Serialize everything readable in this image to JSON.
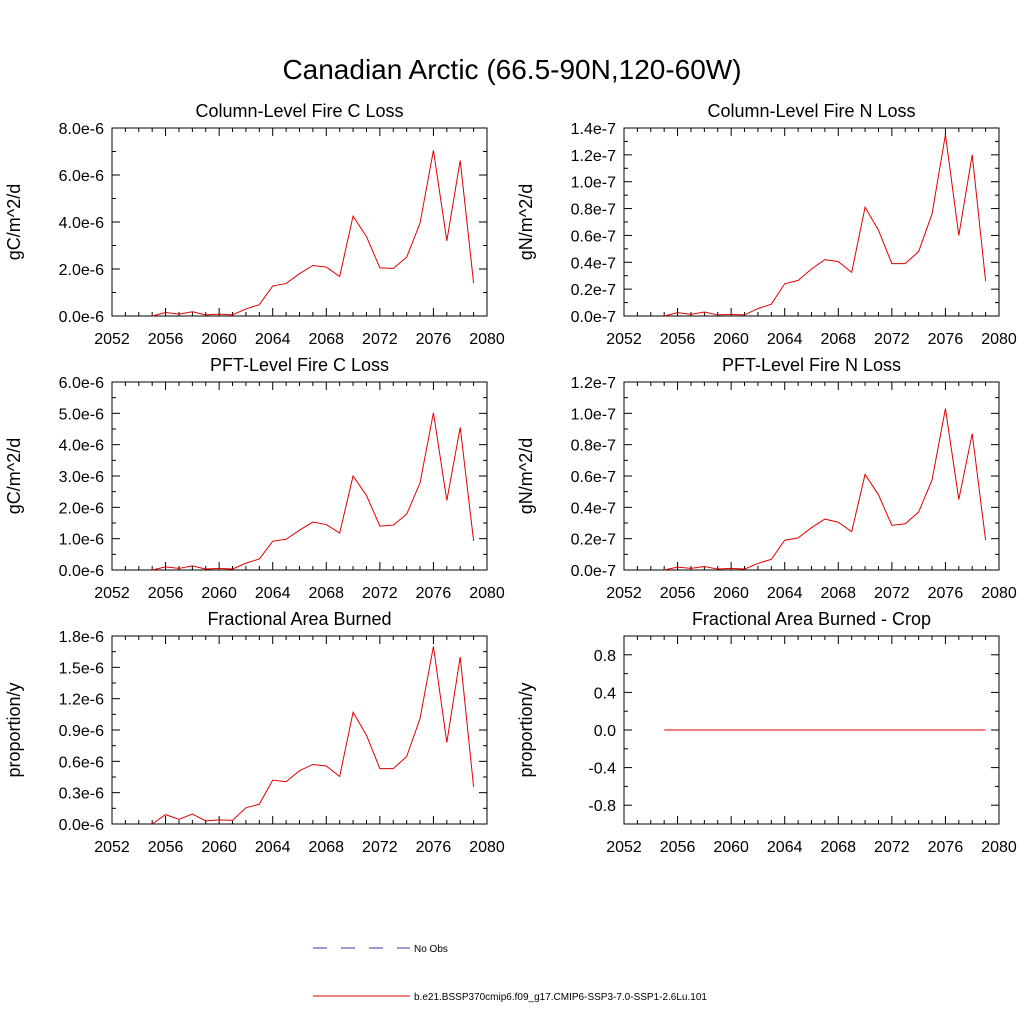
{
  "page_title": "Canadian Arctic (66.5-90N,120-60W)",
  "colors": {
    "series": "#e00000",
    "obs": "#3a3aa8",
    "axis": "#000000"
  },
  "legend": [
    {
      "label": "No Obs",
      "color": "#3a3aa8",
      "dashed": true
    },
    {
      "label": "b.e21.BSSP370cmip6.f09_g17.CMIP6-SSP3-7.0-SSP1-2.6Lu.101",
      "color": "#e00000",
      "dashed": false
    }
  ],
  "chart_data": [
    {
      "type": "line",
      "title": "Column-Level Fire C Loss",
      "ylabel": "gC/m^2/d",
      "xlim": [
        2052,
        2080
      ],
      "xticks": [
        2052,
        2056,
        2060,
        2064,
        2068,
        2072,
        2076,
        2080
      ],
      "xtick_labels": [
        "2052",
        "2056",
        "2060",
        "2064",
        "2068",
        "2072",
        "2076",
        "2080"
      ],
      "ylim": [
        0,
        8e-06
      ],
      "yticks": [
        0,
        2e-06,
        4e-06,
        6e-06,
        8e-06
      ],
      "ytick_labels": [
        "0.0e-6",
        "2.0e-6",
        "4.0e-6",
        "6.0e-6",
        "8.0e-6"
      ],
      "x": [
        2055,
        2056,
        2057,
        2058,
        2059,
        2060,
        2061,
        2062,
        2063,
        2064,
        2065,
        2066,
        2067,
        2068,
        2069,
        2070,
        2071,
        2072,
        2073,
        2074,
        2075,
        2076,
        2077,
        2078,
        2079
      ],
      "series": [
        {
          "values": [
            0.0,
            1.5e-07,
            8e-08,
            1.8e-07,
            5e-08,
            8e-08,
            5e-08,
            3e-07,
            4.8e-07,
            1.28e-06,
            1.38e-06,
            1.8e-06,
            2.15e-06,
            2.08e-06,
            1.68e-06,
            4.25e-06,
            3.38e-06,
            2.05e-06,
            2.02e-06,
            2.5e-06,
            3.95e-06,
            7.05e-06,
            3.2e-06,
            6.62e-06,
            1.4e-06
          ]
        }
      ]
    },
    {
      "type": "line",
      "title": "Column-Level Fire N Loss",
      "ylabel": "gN/m^2/d",
      "xlim": [
        2052,
        2080
      ],
      "xticks": [
        2052,
        2056,
        2060,
        2064,
        2068,
        2072,
        2076,
        2080
      ],
      "xtick_labels": [
        "2052",
        "2056",
        "2060",
        "2064",
        "2068",
        "2072",
        "2076",
        "2080"
      ],
      "ylim": [
        0,
        1.4e-07
      ],
      "yticks": [
        0,
        2e-08,
        4e-08,
        6e-08,
        8e-08,
        1e-07,
        1.2e-07,
        1.4e-07
      ],
      "ytick_labels": [
        "0.0e-7",
        "0.2e-7",
        "0.4e-7",
        "0.6e-7",
        "0.8e-7",
        "1.0e-7",
        "1.2e-7",
        "1.4e-7"
      ],
      "x": [
        2055,
        2056,
        2057,
        2058,
        2059,
        2060,
        2061,
        2062,
        2063,
        2064,
        2065,
        2066,
        2067,
        2068,
        2069,
        2070,
        2071,
        2072,
        2073,
        2074,
        2075,
        2076,
        2077,
        2078,
        2079
      ],
      "series": [
        {
          "values": [
            0.0,
            2.5e-09,
            1.2e-09,
            3e-09,
            8e-10,
            1.2e-09,
            8e-10,
            5.5e-09,
            8.8e-09,
            2.4e-08,
            2.65e-08,
            3.5e-08,
            4.2e-08,
            4.05e-08,
            3.25e-08,
            8.1e-08,
            6.4e-08,
            3.9e-08,
            3.9e-08,
            4.8e-08,
            7.6e-08,
            1.35e-07,
            6e-08,
            1.2e-07,
            2.6e-08
          ]
        }
      ]
    },
    {
      "type": "line",
      "title": "PFT-Level Fire C Loss",
      "ylabel": "gC/m^2/d",
      "xlim": [
        2052,
        2080
      ],
      "xticks": [
        2052,
        2056,
        2060,
        2064,
        2068,
        2072,
        2076,
        2080
      ],
      "xtick_labels": [
        "2052",
        "2056",
        "2060",
        "2064",
        "2068",
        "2072",
        "2076",
        "2080"
      ],
      "ylim": [
        0,
        6e-06
      ],
      "yticks": [
        0,
        1e-06,
        2e-06,
        3e-06,
        4e-06,
        5e-06,
        6e-06
      ],
      "ytick_labels": [
        "0.0e-6",
        "1.0e-6",
        "2.0e-6",
        "3.0e-6",
        "4.0e-6",
        "5.0e-6",
        "6.0e-6"
      ],
      "x": [
        2055,
        2056,
        2057,
        2058,
        2059,
        2060,
        2061,
        2062,
        2063,
        2064,
        2065,
        2066,
        2067,
        2068,
        2069,
        2070,
        2071,
        2072,
        2073,
        2074,
        2075,
        2076,
        2077,
        2078,
        2079
      ],
      "series": [
        {
          "values": [
            0.0,
            1e-07,
            5e-08,
            1.3e-07,
            3e-08,
            5e-08,
            3e-08,
            2.2e-07,
            3.5e-07,
            9.2e-07,
            9.8e-07,
            1.27e-06,
            1.53e-06,
            1.45e-06,
            1.18e-06,
            3e-06,
            2.38e-06,
            1.4e-06,
            1.43e-06,
            1.78e-06,
            2.78e-06,
            5.02e-06,
            2.22e-06,
            4.55e-06,
            9.3e-07
          ]
        }
      ]
    },
    {
      "type": "line",
      "title": "PFT-Level Fire N Loss",
      "ylabel": "gN/m^2/d",
      "xlim": [
        2052,
        2080
      ],
      "xticks": [
        2052,
        2056,
        2060,
        2064,
        2068,
        2072,
        2076,
        2080
      ],
      "xtick_labels": [
        "2052",
        "2056",
        "2060",
        "2064",
        "2068",
        "2072",
        "2076",
        "2080"
      ],
      "ylim": [
        0,
        1.2e-07
      ],
      "yticks": [
        0,
        2e-08,
        4e-08,
        6e-08,
        8e-08,
        1e-07,
        1.2e-07
      ],
      "ytick_labels": [
        "0.0e-7",
        "0.2e-7",
        "0.4e-7",
        "0.6e-7",
        "0.8e-7",
        "1.0e-7",
        "1.2e-7"
      ],
      "x": [
        2055,
        2056,
        2057,
        2058,
        2059,
        2060,
        2061,
        2062,
        2063,
        2064,
        2065,
        2066,
        2067,
        2068,
        2069,
        2070,
        2071,
        2072,
        2073,
        2074,
        2075,
        2076,
        2077,
        2078,
        2079
      ],
      "series": [
        {
          "values": [
            0.0,
            1.8e-09,
            1e-09,
            2.2e-09,
            6e-10,
            1e-09,
            6e-10,
            4.2e-09,
            6.8e-09,
            1.9e-08,
            2.05e-08,
            2.7e-08,
            3.25e-08,
            3.05e-08,
            2.45e-08,
            6.1e-08,
            4.8e-08,
            2.85e-08,
            2.95e-08,
            3.7e-08,
            5.75e-08,
            1.03e-07,
            4.5e-08,
            8.7e-08,
            1.9e-08
          ]
        }
      ]
    },
    {
      "type": "line",
      "title": "Fractional Area Burned",
      "ylabel": "proportion/y",
      "xlim": [
        2052,
        2080
      ],
      "xticks": [
        2052,
        2056,
        2060,
        2064,
        2068,
        2072,
        2076,
        2080
      ],
      "xtick_labels": [
        "2052",
        "2056",
        "2060",
        "2064",
        "2068",
        "2072",
        "2076",
        "2080"
      ],
      "ylim": [
        0,
        1.8e-06
      ],
      "yticks": [
        0,
        3e-07,
        6e-07,
        9e-07,
        1.2e-06,
        1.5e-06,
        1.8e-06
      ],
      "ytick_labels": [
        "0.0e-6",
        "0.3e-6",
        "0.6e-6",
        "0.9e-6",
        "1.2e-6",
        "1.5e-6",
        "1.8e-6"
      ],
      "x": [
        2055,
        2056,
        2057,
        2058,
        2059,
        2060,
        2061,
        2062,
        2063,
        2064,
        2065,
        2066,
        2067,
        2068,
        2069,
        2070,
        2071,
        2072,
        2073,
        2074,
        2075,
        2076,
        2077,
        2078,
        2079
      ],
      "series": [
        {
          "values": [
            0.0,
            9e-08,
            4.5e-08,
            9.5e-08,
            3e-08,
            4e-08,
            3.5e-08,
            1.55e-07,
            1.9e-07,
            4.2e-07,
            4.05e-07,
            5.1e-07,
            5.7e-07,
            5.55e-07,
            4.55e-07,
            1.07e-06,
            8.5e-07,
            5.3e-07,
            5.3e-07,
            6.45e-07,
            1.01e-06,
            1.7e-06,
            7.8e-07,
            1.6e-06,
            3.55e-07
          ]
        }
      ]
    },
    {
      "type": "line",
      "title": "Fractional Area Burned - Crop",
      "ylabel": "proportion/y",
      "xlim": [
        2052,
        2080
      ],
      "xticks": [
        2052,
        2056,
        2060,
        2064,
        2068,
        2072,
        2076,
        2080
      ],
      "xtick_labels": [
        "2052",
        "2056",
        "2060",
        "2064",
        "2068",
        "2072",
        "2076",
        "2080"
      ],
      "ylim": [
        -1.0,
        1.0
      ],
      "yticks": [
        -0.8,
        -0.4,
        0.0,
        0.4,
        0.8
      ],
      "ytick_labels": [
        "-0.8",
        "-0.4",
        "0.0",
        "0.4",
        "0.8"
      ],
      "x": [
        2055,
        2056,
        2057,
        2058,
        2059,
        2060,
        2061,
        2062,
        2063,
        2064,
        2065,
        2066,
        2067,
        2068,
        2069,
        2070,
        2071,
        2072,
        2073,
        2074,
        2075,
        2076,
        2077,
        2078,
        2079
      ],
      "series": [
        {
          "values": [
            0,
            0,
            0,
            0,
            0,
            0,
            0,
            0,
            0,
            0,
            0,
            0,
            0,
            0,
            0,
            0,
            0,
            0,
            0,
            0,
            0,
            0,
            0,
            0,
            0
          ]
        }
      ]
    }
  ]
}
